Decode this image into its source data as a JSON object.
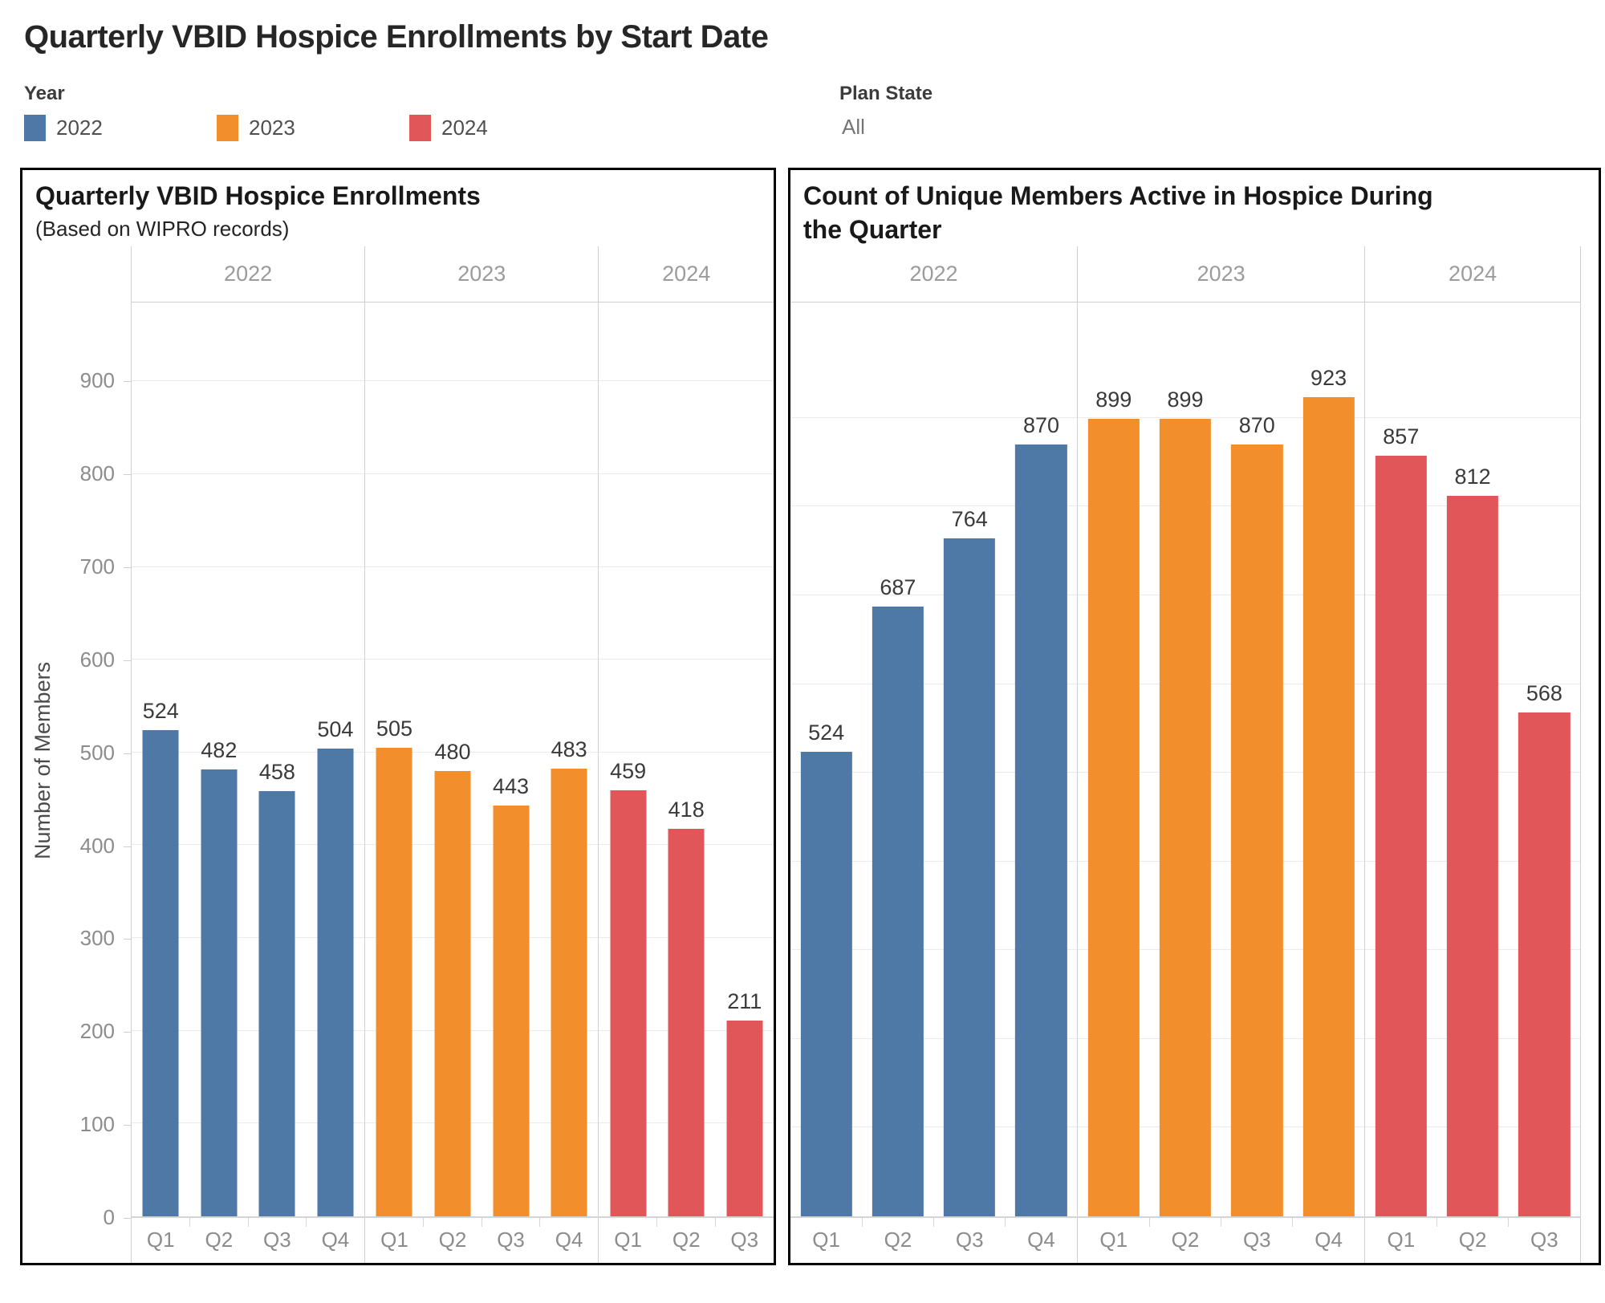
{
  "header": {
    "title": "Quarterly VBID Hospice Enrollments by Start Date"
  },
  "filters": {
    "year_legend": {
      "label": "Year",
      "items": [
        {
          "label": "2022",
          "color": "#4e79a7"
        },
        {
          "label": "2023",
          "color": "#f28e2b"
        },
        {
          "label": "2024",
          "color": "#e15759"
        }
      ]
    },
    "plan_state": {
      "label": "Plan State",
      "value": "All"
    }
  },
  "chart_data": [
    {
      "type": "bar",
      "title": "Quarterly VBID Hospice Enrollments",
      "subtitle": "(Based on WIPRO records)",
      "xlabel": "",
      "ylabel": "Number of Members",
      "ylim": [
        0,
        985
      ],
      "y_ticks": [
        0,
        100,
        200,
        300,
        400,
        500,
        600,
        700,
        800,
        900
      ],
      "grid": true,
      "show_y_axis": true,
      "legend_position": "top-outside",
      "bar_width_pct": 62,
      "series": [
        {
          "name": "2022",
          "color": "#4e79a7",
          "categories": [
            "Q1",
            "Q2",
            "Q3",
            "Q4"
          ],
          "values": [
            524,
            482,
            458,
            504
          ]
        },
        {
          "name": "2023",
          "color": "#f28e2b",
          "categories": [
            "Q1",
            "Q2",
            "Q3",
            "Q4"
          ],
          "values": [
            505,
            480,
            443,
            483
          ]
        },
        {
          "name": "2024",
          "color": "#e15759",
          "categories": [
            "Q1",
            "Q2",
            "Q3"
          ],
          "values": [
            459,
            418,
            211
          ]
        }
      ]
    },
    {
      "type": "bar",
      "title": "Count of Unique Members Active in Hospice During the Quarter",
      "subtitle": "",
      "xlabel": "",
      "ylabel": "",
      "ylim": [
        0,
        1030
      ],
      "y_ticks": [
        0,
        100,
        200,
        300,
        400,
        500,
        600,
        700,
        800,
        900
      ],
      "grid": true,
      "show_y_axis": false,
      "legend_position": "top-outside",
      "bar_width_pct": 72,
      "series": [
        {
          "name": "2022",
          "color": "#4e79a7",
          "categories": [
            "Q1",
            "Q2",
            "Q3",
            "Q4"
          ],
          "values": [
            524,
            687,
            764,
            870
          ]
        },
        {
          "name": "2023",
          "color": "#f28e2b",
          "categories": [
            "Q1",
            "Q2",
            "Q3",
            "Q4"
          ],
          "values": [
            899,
            899,
            870,
            923
          ]
        },
        {
          "name": "2024",
          "color": "#e15759",
          "categories": [
            "Q1",
            "Q2",
            "Q3"
          ],
          "values": [
            857,
            812,
            568
          ]
        }
      ]
    }
  ]
}
